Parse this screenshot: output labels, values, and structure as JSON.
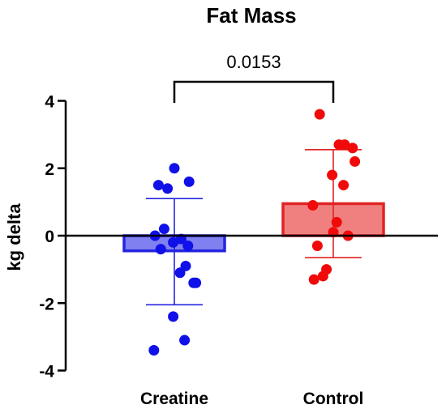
{
  "chart_data": {
    "type": "bar",
    "title": "Fat Mass",
    "xlabel": "",
    "ylabel": "kg delta",
    "ylim": [
      -4,
      4
    ],
    "yticks": [
      -4,
      -2,
      0,
      2,
      4
    ],
    "categories": [
      "Creatine",
      "Control"
    ],
    "bars": [
      {
        "category": "Creatine",
        "mean": -0.45,
        "sd_upper": 1.1,
        "sd_lower": -2.05,
        "fill_color": "#8080f0",
        "edge_color": "#2424e0",
        "point_color": "#1010e8",
        "points": [
          2.0,
          1.6,
          1.5,
          1.4,
          0.2,
          0.0,
          -0.1,
          -0.2,
          -0.3,
          -0.4,
          -0.9,
          -1.1,
          -1.4,
          -1.4,
          -2.4,
          -3.1,
          -3.4
        ]
      },
      {
        "category": "Control",
        "mean": 0.95,
        "sd_upper": 2.55,
        "sd_lower": -0.65,
        "fill_color": "#f08080",
        "edge_color": "#e02424",
        "point_color": "#f00a0a",
        "points": [
          3.6,
          2.7,
          2.7,
          2.6,
          2.2,
          1.8,
          1.5,
          0.9,
          0.4,
          0.1,
          0.0,
          -0.3,
          -1.0,
          -1.2,
          -1.3
        ]
      }
    ],
    "comparison": {
      "from": "Creatine",
      "to": "Control",
      "label": "0.0153"
    }
  }
}
